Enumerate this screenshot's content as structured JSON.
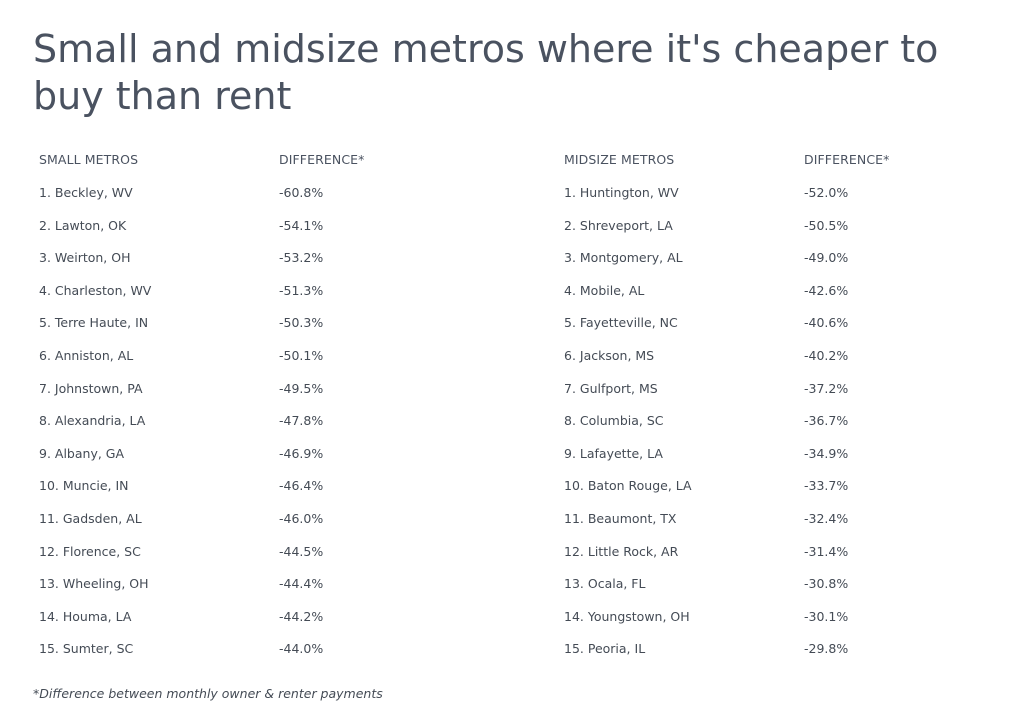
{
  "title": "Small and midsize metros where it's cheaper to buy than rent",
  "footnote": "*Difference between monthly owner & renter payments",
  "chart_data": {
    "type": "table",
    "title": "Small and midsize metros where it's cheaper to buy than rent",
    "tables": [
      {
        "columns": [
          "SMALL METROS",
          "DIFFERENCE*"
        ],
        "rows": [
          [
            "1. Beckley, WV",
            "-60.8%"
          ],
          [
            "2. Lawton, OK",
            "-54.1%"
          ],
          [
            "3. Weirton, OH",
            "-53.2%"
          ],
          [
            "4. Charleston, WV",
            "-51.3%"
          ],
          [
            "5. Terre Haute, IN",
            "-50.3%"
          ],
          [
            "6. Anniston, AL",
            "-50.1%"
          ],
          [
            "7. Johnstown, PA",
            "-49.5%"
          ],
          [
            "8. Alexandria, LA",
            "-47.8%"
          ],
          [
            "9. Albany, GA",
            "-46.9%"
          ],
          [
            "10. Muncie, IN",
            "-46.4%"
          ],
          [
            "11. Gadsden, AL",
            "-46.0%"
          ],
          [
            "12. Florence, SC",
            "-44.5%"
          ],
          [
            "13. Wheeling, OH",
            "-44.4%"
          ],
          [
            "14. Houma, LA",
            "-44.2%"
          ],
          [
            "15. Sumter, SC",
            "-44.0%"
          ]
        ]
      },
      {
        "columns": [
          "MIDSIZE METROS",
          "DIFFERENCE*"
        ],
        "rows": [
          [
            "1. Huntington, WV",
            "-52.0%"
          ],
          [
            "2. Shreveport, LA",
            "-50.5%"
          ],
          [
            "3. Montgomery, AL",
            "-49.0%"
          ],
          [
            "4. Mobile, AL",
            "-42.6%"
          ],
          [
            "5. Fayetteville, NC",
            "-40.6%"
          ],
          [
            "6. Jackson, MS",
            "-40.2%"
          ],
          [
            "7. Gulfport, MS",
            "-37.2%"
          ],
          [
            "8. Columbia, SC",
            "-36.7%"
          ],
          [
            "9. Lafayette, LA",
            "-34.9%"
          ],
          [
            "10. Baton Rouge, LA",
            "-33.7%"
          ],
          [
            "11. Beaumont, TX",
            "-32.4%"
          ],
          [
            "12. Little Rock, AR",
            "-31.4%"
          ],
          [
            "13. Ocala, FL",
            "-30.8%"
          ],
          [
            "14. Youngstown, OH",
            "-30.1%"
          ],
          [
            "15. Peoria, IL",
            "-29.8%"
          ]
        ]
      }
    ]
  }
}
